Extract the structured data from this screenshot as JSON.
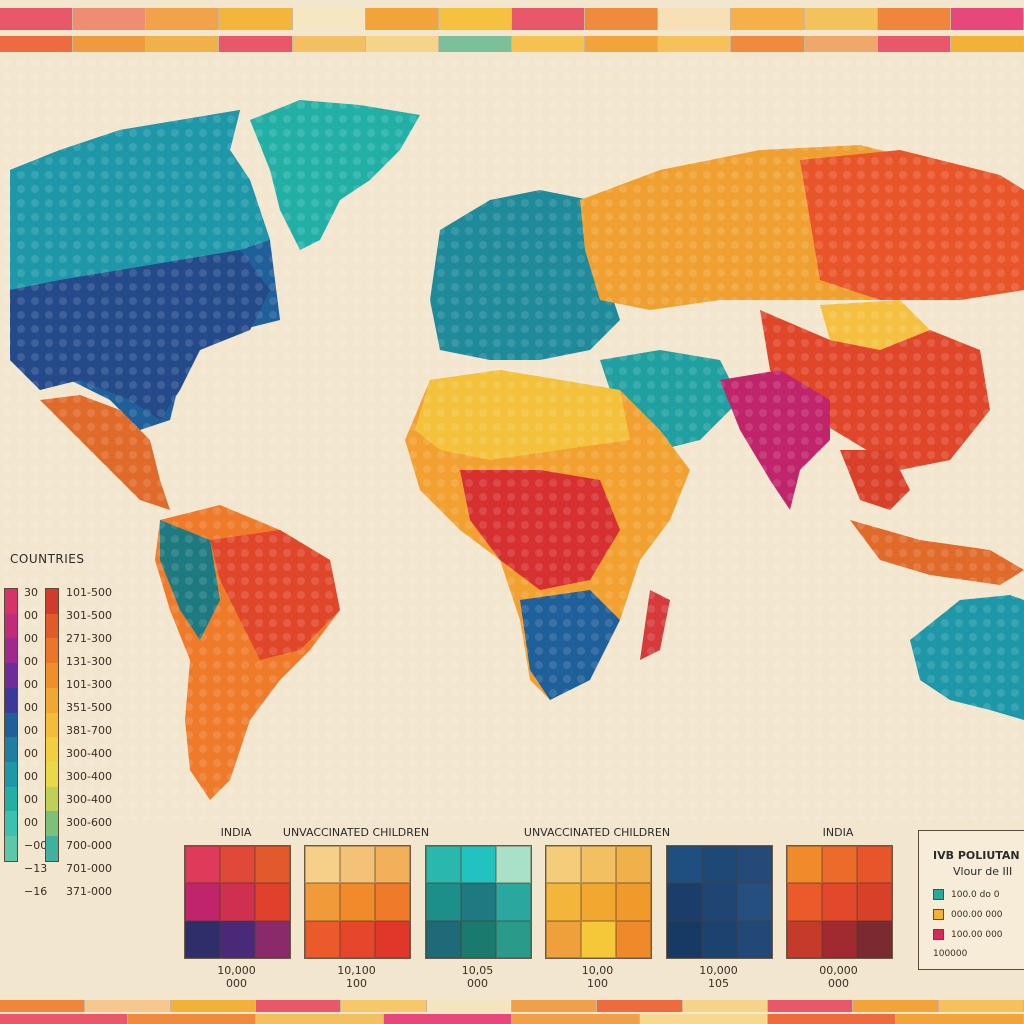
{
  "legend": {
    "title": "COUNTRIES",
    "ticks_left": [
      "30",
      "00",
      "00",
      "00",
      "00",
      "00",
      "00",
      "00",
      "00",
      "00",
      "00",
      "−00",
      "−13",
      "−16"
    ],
    "ticks_right": [
      "101-500",
      "301-500",
      "271-300",
      "131-300",
      "101-300",
      "351-500",
      "381-700",
      "300-400",
      "300-400",
      "300-400",
      "300-600",
      "700-000",
      "701-000",
      "371-000"
    ],
    "bar_left_colors": [
      "#d6336c",
      "#c22a7a",
      "#a0288e",
      "#6e2b9a",
      "#3a3a9a",
      "#1f5f9a",
      "#207ea0",
      "#1e98a8",
      "#22b0a6",
      "#3cc0b0",
      "#5cc8a8"
    ],
    "bar_right_colors": [
      "#d13b2c",
      "#e05a2a",
      "#e9762a",
      "#ee8f2c",
      "#f1a733",
      "#f3bd3a",
      "#f2cf40",
      "#e8d84a",
      "#bdd05a",
      "#7cc07a",
      "#40b0a0"
    ]
  },
  "grids": [
    {
      "label": "INDIA",
      "colors": [
        "#e03a5a",
        "#e0483a",
        "#e25a2c",
        "#c0246a",
        "#d03050",
        "#e0402c",
        "#2e2f6a",
        "#4a2a78",
        "#8a2a6a"
      ],
      "caption": [
        "10,000",
        "000"
      ]
    },
    {
      "label": "UNVACCINATED CHILDREN",
      "colors": [
        "#f6cf88",
        "#f3c178",
        "#f3b05a",
        "#f09a3a",
        "#f08a2a",
        "#ee7a2a",
        "#ea5a2a",
        "#e6472a",
        "#e0372a"
      ],
      "caption": [
        "10,100",
        "100"
      ]
    },
    {
      "label": "",
      "colors": [
        "#2ab8ae",
        "#22c2c0",
        "#a9e0c8",
        "#1d8f8a",
        "#1e7a80",
        "#2aa8a0",
        "#1e6a78",
        "#1a7a6e",
        "#2a9a8a"
      ],
      "caption": [
        "10,05",
        "000"
      ]
    },
    {
      "label": "UNVACCINATED CHILDREN",
      "colors": [
        "#f5cc7a",
        "#f2c060",
        "#f0b04a",
        "#f3b63a",
        "#f2a830",
        "#ef9a2a",
        "#f0a03a",
        "#f4c838",
        "#ef8a2a"
      ],
      "caption": [
        "10,00",
        "100"
      ]
    },
    {
      "label": "",
      "colors": [
        "#1e4f80",
        "#1d4878",
        "#244a7a",
        "#1a3d6a",
        "#1f4574",
        "#254f7e",
        "#173a64",
        "#1c4270",
        "#224878"
      ],
      "caption": [
        "10,000",
        "105"
      ]
    },
    {
      "label": "INDIA",
      "colors": [
        "#f08a2a",
        "#ec6a2a",
        "#e8552a",
        "#ea5a2a",
        "#e4482a",
        "#d8402a",
        "#c63a2a",
        "#a02a30",
        "#7a2a30"
      ],
      "caption": [
        "00,000",
        "000"
      ]
    }
  ],
  "infobox": {
    "title": "IVB POLIUTAN",
    "subtitle": "Vlour de III",
    "items": [
      {
        "color": "#2aa89a",
        "label": "100.0 do 0"
      },
      {
        "color": "#f2b23a",
        "label": "000.00 000"
      },
      {
        "color": "#d82a5a",
        "label": "100.00 000"
      }
    ],
    "footer": "100000"
  },
  "bands": {
    "top1": [
      "#e9576a",
      "#ef8d72",
      "#f2a24a",
      "#f3b53a",
      "#f5e7c2",
      "#f2a33a",
      "#f6c13e",
      "#e9576a",
      "#f08a3c",
      "#f7e0b5",
      "#f6b047",
      "#f4c25a",
      "#f0863c",
      "#e7477a"
    ],
    "top2": [
      "#ee6b3f",
      "#f09a3f",
      "#f0b04a",
      "#e9576a",
      "#f2c060",
      "#f5d48a",
      "#7cc09a",
      "#f5c24f",
      "#f2a33a",
      "#f6c05a",
      "#f08a3c",
      "#f0a86a",
      "#e9576a",
      "#f2b23a"
    ],
    "bot1": [
      "#f0863c",
      "#f5c890",
      "#f2b23a",
      "#e9576a",
      "#f6c86a",
      "#f5e4c0",
      "#f0a04a",
      "#ee6b3f",
      "#f5d48a",
      "#e9576a",
      "#f2a33a",
      "#f6c05a"
    ],
    "bot2": [
      "#e9576a",
      "#f08a3c",
      "#f2c060",
      "#e7477a",
      "#f0a04a",
      "#f6d890",
      "#ee6b3f",
      "#f2a33a"
    ]
  }
}
